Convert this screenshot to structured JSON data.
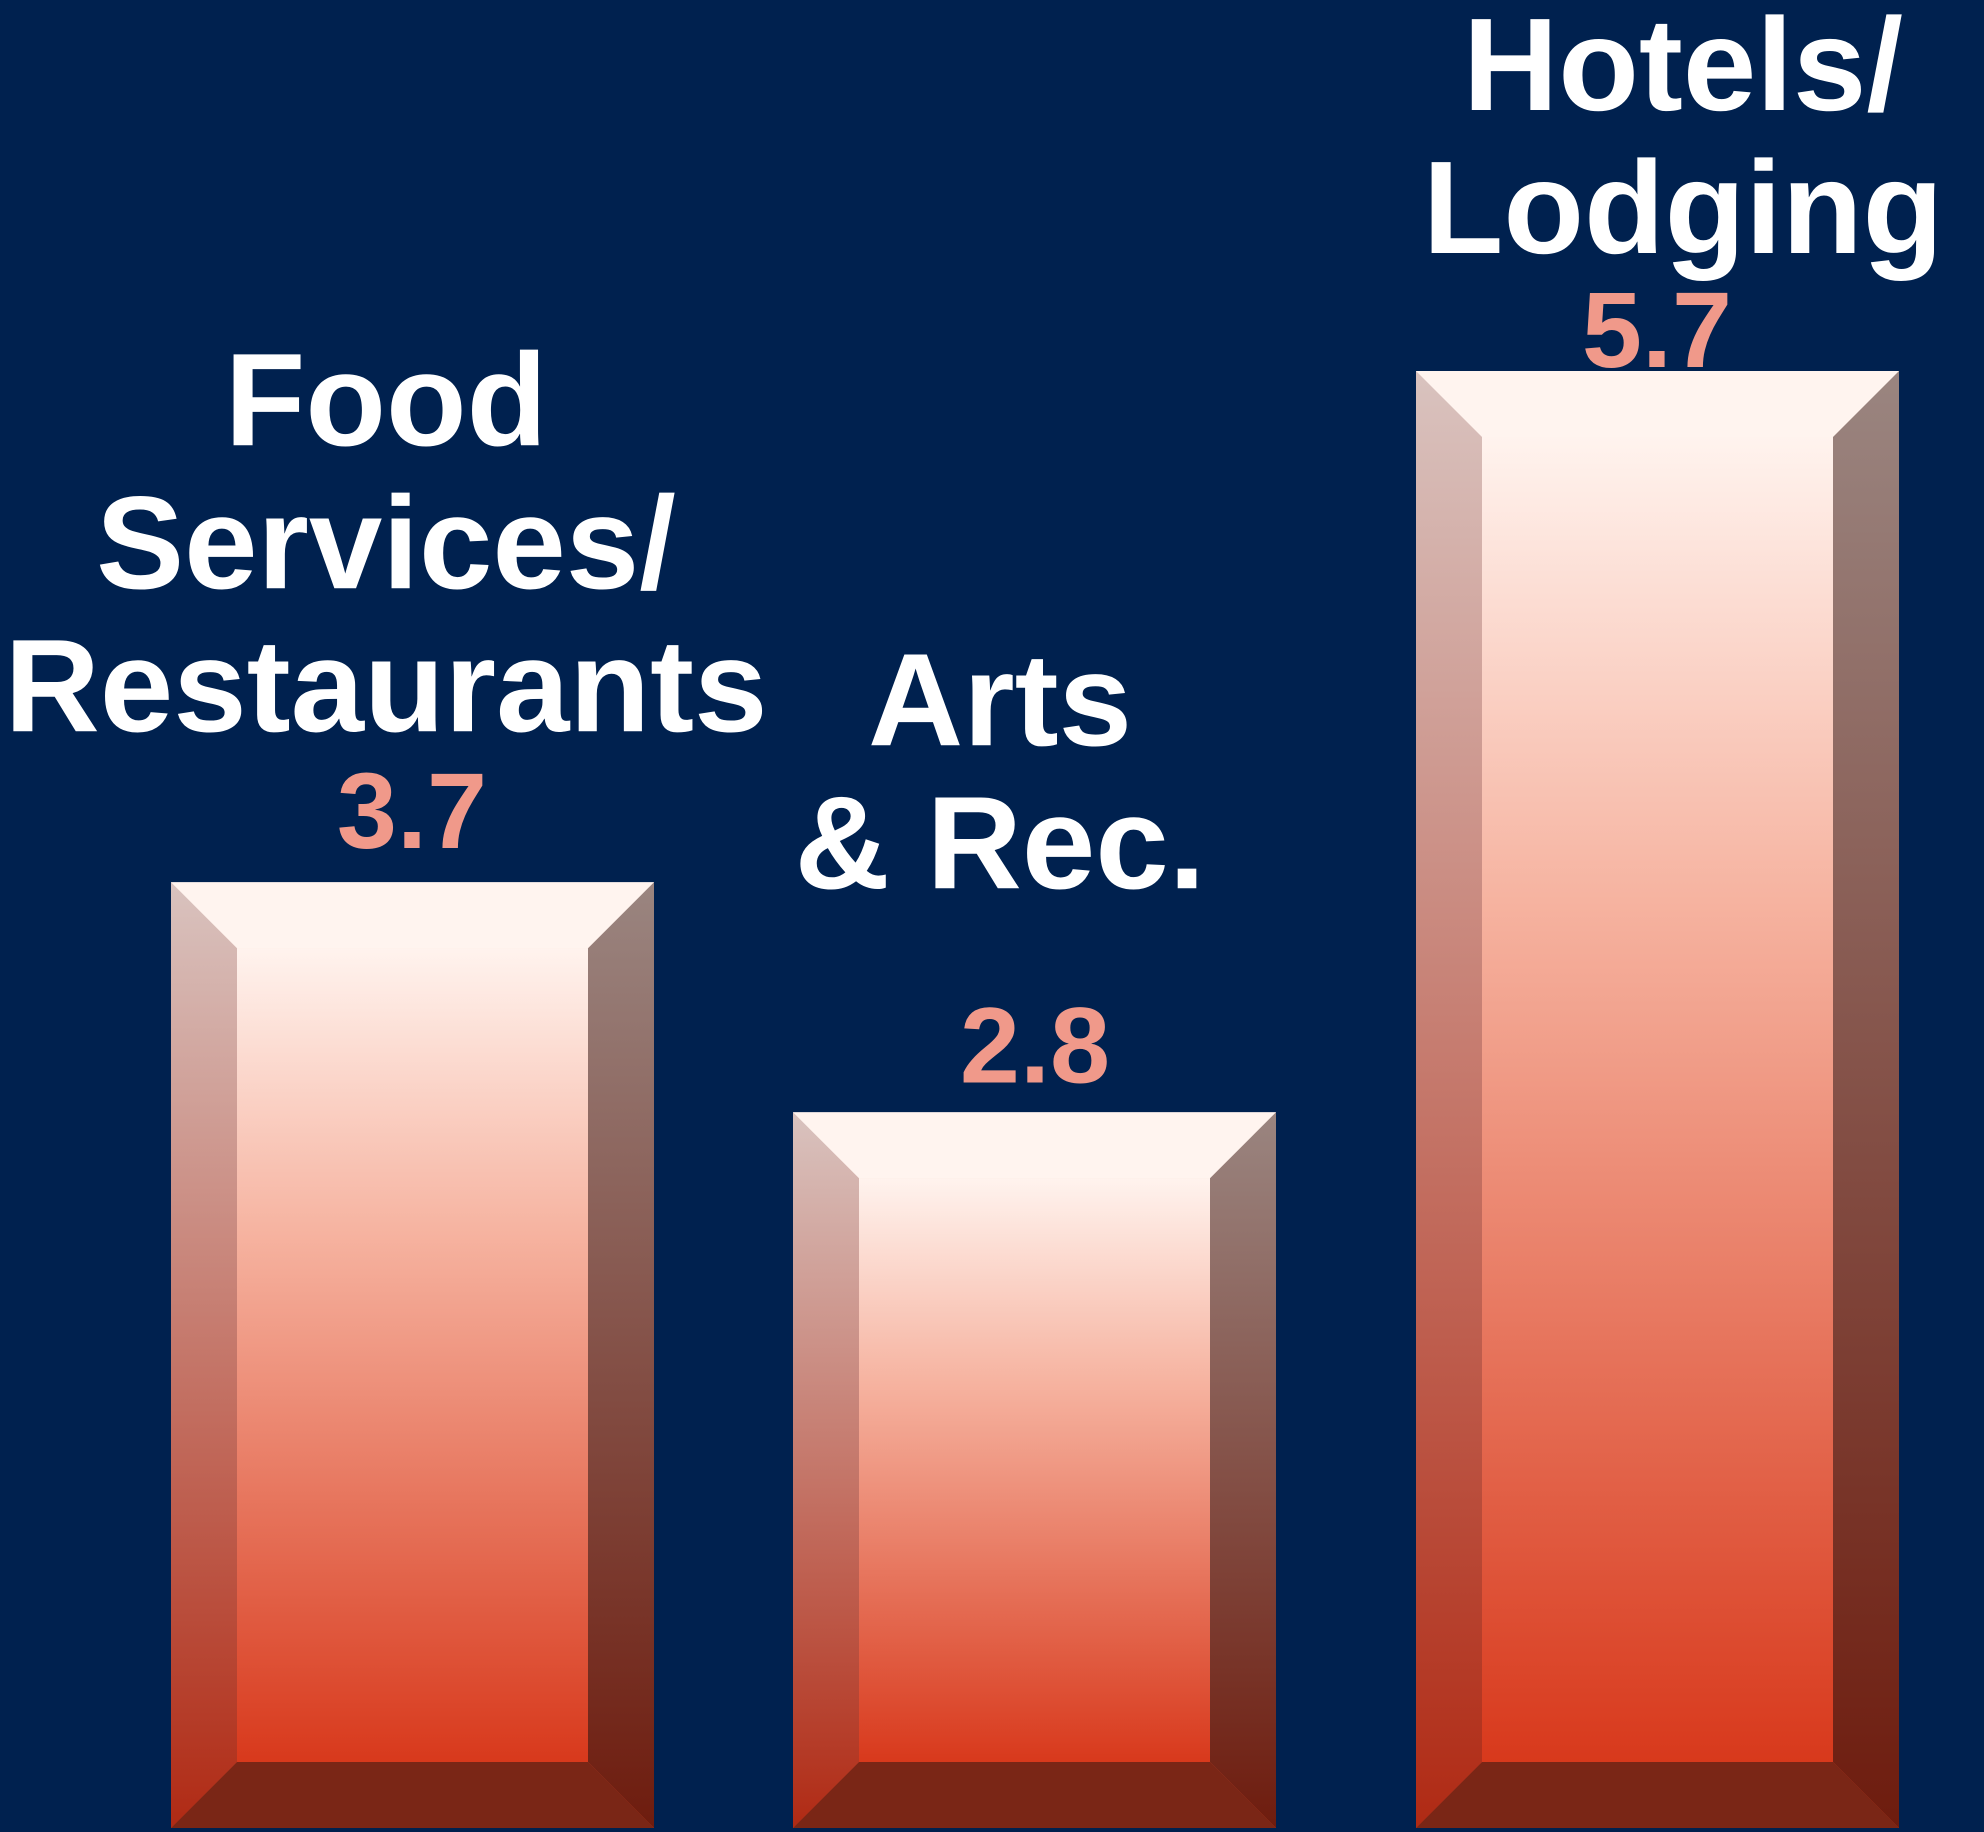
{
  "chart_data": {
    "type": "bar",
    "categories": [
      [
        "Food",
        "Services/",
        "Restaurants"
      ],
      [
        "Arts",
        "& Rec."
      ],
      [
        "Hotels/",
        "Lodging"
      ]
    ],
    "values": [
      3.7,
      2.8,
      5.7
    ],
    "color": "#dc4a2c",
    "value_label_color": "#f0998a"
  }
}
